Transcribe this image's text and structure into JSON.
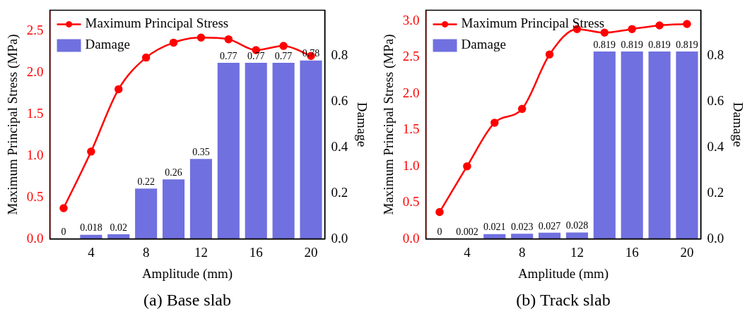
{
  "chart_data": [
    {
      "type": "bar",
      "title": "(a) Base slab",
      "xlabel": "Amplitude (mm)",
      "ylabel": "Maximum Principal Stress (MPa)",
      "y2label": "Damage",
      "x": [
        2,
        4,
        6,
        8,
        10,
        12,
        14,
        16,
        18,
        20
      ],
      "xlim": [
        1,
        21
      ],
      "xticks": [
        4,
        8,
        12,
        16,
        20
      ],
      "ylim": [
        0,
        2.75
      ],
      "yticks": [
        {
          "value": 0,
          "label": "0.0"
        },
        0.5,
        {
          "value": 1,
          "label": "1.0"
        },
        1.5,
        {
          "value": 2,
          "label": "2.0"
        },
        2.5
      ],
      "y2lim": [
        0,
        1.0
      ],
      "y2ticks": [
        {
          "value": 0,
          "label": "0.0"
        },
        0.2,
        0.4,
        0.6,
        0.8
      ],
      "legend": "top left",
      "grid": false,
      "series": [
        {
          "name": "Maximum Principal Stress",
          "type": "line",
          "color": "#ff0000",
          "marker": "circle",
          "values": [
            0.37,
            1.05,
            1.8,
            2.18,
            2.36,
            2.42,
            2.4,
            2.27,
            2.32,
            2.2
          ]
        },
        {
          "name": "Damage",
          "axis": "y2",
          "color": "#7070e0",
          "data_labels": true,
          "values": [
            0,
            0.018,
            0.02,
            0.22,
            0.26,
            0.35,
            0.77,
            0.77,
            0.77,
            0.78
          ]
        }
      ]
    },
    {
      "type": "bar",
      "title": "(b) Track slab",
      "xlabel": "Amplitude (mm)",
      "ylabel": "Maximum Principal Stress (MPa)",
      "y2label": "Damage",
      "x": [
        2,
        4,
        6,
        8,
        10,
        12,
        14,
        16,
        18,
        20
      ],
      "xlim": [
        1,
        21
      ],
      "xticks": [
        4,
        8,
        12,
        16,
        20
      ],
      "ylim": [
        0,
        3.15
      ],
      "yticks": [
        {
          "value": 0,
          "label": "0.0"
        },
        0.5,
        {
          "value": 1,
          "label": "1.0"
        },
        1.5,
        {
          "value": 2,
          "label": "2.0"
        },
        2.5,
        {
          "value": 3,
          "label": "3.0"
        }
      ],
      "y2lim": [
        0,
        1.0
      ],
      "y2ticks": [
        {
          "value": 0,
          "label": "0.0"
        },
        0.2,
        0.4,
        0.6,
        0.8
      ],
      "legend": "top left",
      "grid": false,
      "series": [
        {
          "name": "Maximum Principal Stress",
          "type": "line",
          "color": "#ff0000",
          "marker": "circle",
          "values": [
            0.37,
            1.0,
            1.6,
            1.79,
            2.54,
            2.89,
            2.84,
            2.89,
            2.94,
            2.96
          ]
        },
        {
          "name": "Damage",
          "axis": "y2",
          "color": "#7070e0",
          "data_labels": true,
          "values": [
            0,
            0.002,
            0.021,
            0.023,
            0.027,
            0.028,
            0.819,
            0.819,
            0.819,
            0.819
          ]
        }
      ]
    }
  ]
}
